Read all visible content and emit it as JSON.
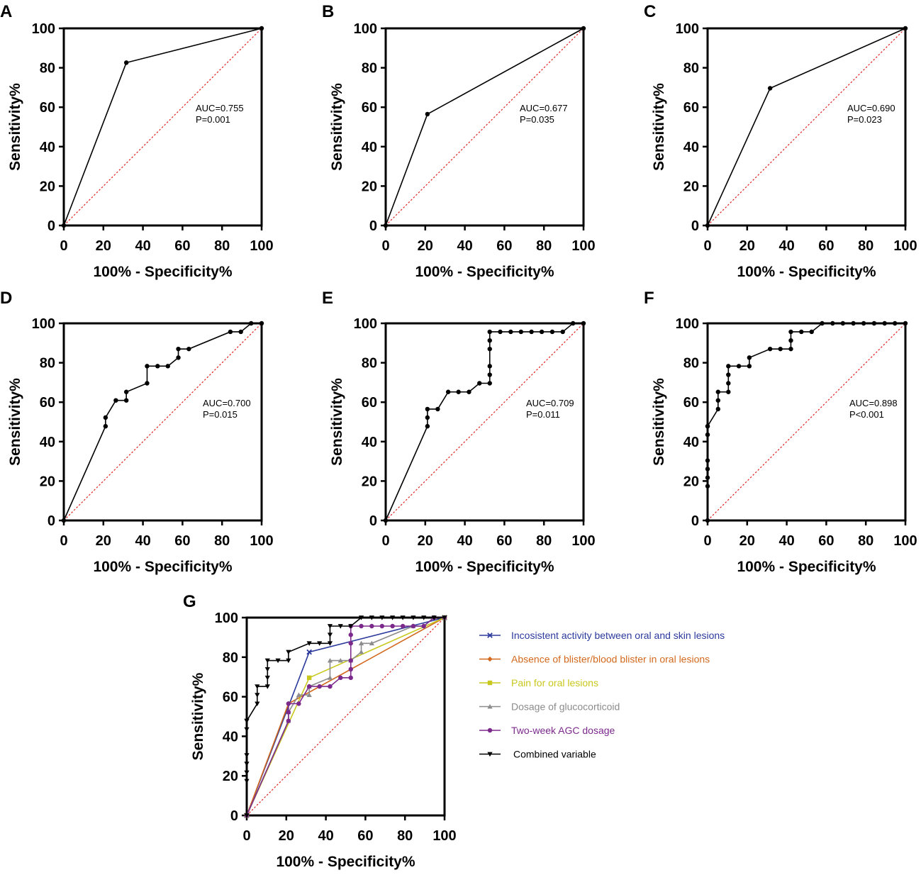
{
  "figure": {
    "xlabel": "100% - Specificity%",
    "ylabel": "Sensitivity%",
    "ticks": [
      "0",
      "20",
      "40",
      "60",
      "80",
      "100"
    ]
  },
  "chart_data": [
    {
      "panel": "A",
      "type": "line",
      "title": "",
      "xlabel": "100% - Specificity%",
      "ylabel": "Sensitivity%",
      "xlim": [
        0,
        100
      ],
      "ylim": [
        0,
        100
      ],
      "annotation": [
        "AUC=0.755",
        "P=0.001"
      ],
      "reference_line": [
        [
          0,
          0
        ],
        [
          100,
          100
        ]
      ],
      "series": [
        {
          "name": "ROC",
          "color": "#000000",
          "marker": "circle",
          "x": [
            0,
            31.6,
            100
          ],
          "y": [
            0,
            82.6,
            100
          ]
        }
      ]
    },
    {
      "panel": "B",
      "type": "line",
      "title": "",
      "xlabel": "100% - Specificity%",
      "ylabel": "Sensitivity%",
      "xlim": [
        0,
        100
      ],
      "ylim": [
        0,
        100
      ],
      "annotation": [
        "AUC=0.677",
        "P=0.035"
      ],
      "reference_line": [
        [
          0,
          0
        ],
        [
          100,
          100
        ]
      ],
      "series": [
        {
          "name": "ROC",
          "color": "#000000",
          "marker": "circle",
          "x": [
            0,
            21.1,
            100
          ],
          "y": [
            0,
            56.5,
            100
          ]
        }
      ]
    },
    {
      "panel": "C",
      "type": "line",
      "title": "",
      "xlabel": "100% - Specificity%",
      "ylabel": "Sensitivity%",
      "xlim": [
        0,
        100
      ],
      "ylim": [
        0,
        100
      ],
      "annotation": [
        "AUC=0.690",
        "P=0.023"
      ],
      "reference_line": [
        [
          0,
          0
        ],
        [
          100,
          100
        ]
      ],
      "series": [
        {
          "name": "ROC",
          "color": "#000000",
          "marker": "circle",
          "x": [
            0,
            31.6,
            100
          ],
          "y": [
            0,
            69.6,
            100
          ]
        }
      ]
    },
    {
      "panel": "D",
      "type": "line",
      "title": "",
      "xlabel": "100% - Specificity%",
      "ylabel": "Sensitivity%",
      "xlim": [
        0,
        100
      ],
      "ylim": [
        0,
        100
      ],
      "annotation": [
        "AUC=0.700",
        "P=0.015"
      ],
      "reference_line": [
        [
          0,
          0
        ],
        [
          100,
          100
        ]
      ],
      "series": [
        {
          "name": "ROC",
          "color": "#000000",
          "marker": "circle",
          "x": [
            0,
            21.1,
            21.1,
            26.3,
            31.6,
            31.6,
            42.1,
            42.1,
            47.4,
            52.6,
            57.9,
            57.9,
            63.2,
            84.2,
            89.5,
            94.7,
            100
          ],
          "y": [
            0,
            47.8,
            52.2,
            60.9,
            60.9,
            65.2,
            69.6,
            78.3,
            78.3,
            78.3,
            82.6,
            87.0,
            87.0,
            95.7,
            95.7,
            100,
            100
          ]
        }
      ]
    },
    {
      "panel": "E",
      "type": "line",
      "title": "",
      "xlabel": "100% - Specificity%",
      "ylabel": "Sensitivity%",
      "xlim": [
        0,
        100
      ],
      "ylim": [
        0,
        100
      ],
      "annotation": [
        "AUC=0.709",
        "P=0.011"
      ],
      "reference_line": [
        [
          0,
          0
        ],
        [
          100,
          100
        ]
      ],
      "series": [
        {
          "name": "ROC",
          "color": "#000000",
          "marker": "circle",
          "x": [
            0,
            21.1,
            21.1,
            21.1,
            26.3,
            31.6,
            36.8,
            42.1,
            47.4,
            52.6,
            52.6,
            52.6,
            52.6,
            52.6,
            52.6,
            57.9,
            63.2,
            68.4,
            73.7,
            78.9,
            84.2,
            89.5,
            94.7,
            100
          ],
          "y": [
            0,
            47.8,
            52.2,
            56.5,
            56.5,
            65.2,
            65.2,
            65.2,
            69.6,
            69.6,
            73.9,
            78.3,
            87.0,
            91.3,
            95.7,
            95.7,
            95.7,
            95.7,
            95.7,
            95.7,
            95.7,
            95.7,
            100,
            100
          ]
        }
      ]
    },
    {
      "panel": "F",
      "type": "line",
      "title": "",
      "xlabel": "100% - Specificity%",
      "ylabel": "Sensitivity%",
      "xlim": [
        0,
        100
      ],
      "ylim": [
        0,
        100
      ],
      "annotation": [
        "AUC=0.898",
        "P<0.001"
      ],
      "reference_line": [
        [
          0,
          0
        ],
        [
          100,
          100
        ]
      ],
      "series": [
        {
          "name": "ROC",
          "color": "#000000",
          "marker": "circle",
          "x": [
            0,
            0,
            0,
            0,
            0,
            0,
            0,
            0,
            5.3,
            5.3,
            5.3,
            10.5,
            10.5,
            10.5,
            10.5,
            15.8,
            21.1,
            21.1,
            31.6,
            36.8,
            42.1,
            42.1,
            42.1,
            47.4,
            52.6,
            57.9,
            63.2,
            68.4,
            73.7,
            78.9,
            84.2,
            89.5,
            94.7,
            100
          ],
          "y": [
            0,
            17.4,
            21.7,
            26.1,
            30.4,
            43.5,
            47.8,
            47.8,
            56.5,
            60.9,
            65.2,
            65.2,
            69.6,
            73.9,
            78.3,
            78.3,
            78.3,
            82.6,
            87.0,
            87.0,
            87.0,
            91.3,
            95.7,
            95.7,
            95.7,
            100,
            100,
            100,
            100,
            100,
            100,
            100,
            100,
            100
          ]
        }
      ]
    },
    {
      "panel": "G",
      "type": "line",
      "title": "",
      "xlabel": "100% - Specificity%",
      "ylabel": "Sensitivity%",
      "xlim": [
        0,
        100
      ],
      "ylim": [
        0,
        100
      ],
      "reference_line": [
        [
          0,
          0
        ],
        [
          100,
          100
        ]
      ],
      "legend_position": "right",
      "series": [
        {
          "name": "Incosistent activity between oral and skin lesions",
          "color": "#2b3a9c",
          "marker": "x",
          "x": [
            0,
            31.6,
            100
          ],
          "y": [
            0,
            82.6,
            100
          ]
        },
        {
          "name": "Absence of blister/blood blister in oral lesions",
          "color": "#d2691e",
          "marker": "diamond",
          "x": [
            0,
            21.1,
            100
          ],
          "y": [
            0,
            56.5,
            100
          ]
        },
        {
          "name": "Pain for oral lesions",
          "color": "#c8c81e",
          "marker": "square",
          "x": [
            0,
            31.6,
            100
          ],
          "y": [
            0,
            69.6,
            100
          ]
        },
        {
          "name": "Dosage of glucocorticoid",
          "color": "#8c8c8c",
          "marker": "triangle-up",
          "x": [
            0,
            21.1,
            21.1,
            26.3,
            31.6,
            31.6,
            42.1,
            42.1,
            47.4,
            52.6,
            57.9,
            57.9,
            63.2,
            84.2,
            89.5,
            94.7,
            100
          ],
          "y": [
            0,
            47.8,
            52.2,
            60.9,
            60.9,
            65.2,
            69.6,
            78.3,
            78.3,
            78.3,
            82.6,
            87.0,
            87.0,
            95.7,
            95.7,
            100,
            100
          ]
        },
        {
          "name": "Two-week AGC dosage",
          "color": "#7b2a8c",
          "marker": "circle",
          "x": [
            0,
            21.1,
            21.1,
            21.1,
            26.3,
            31.6,
            36.8,
            42.1,
            47.4,
            52.6,
            52.6,
            52.6,
            52.6,
            52.6,
            52.6,
            57.9,
            63.2,
            68.4,
            73.7,
            78.9,
            84.2,
            89.5,
            94.7,
            100
          ],
          "y": [
            0,
            47.8,
            52.2,
            56.5,
            56.5,
            65.2,
            65.2,
            65.2,
            69.6,
            69.6,
            73.9,
            78.3,
            87.0,
            91.3,
            95.7,
            95.7,
            95.7,
            95.7,
            95.7,
            95.7,
            95.7,
            95.7,
            100,
            100
          ]
        },
        {
          "name": "Combined variable",
          "color": "#000000",
          "marker": "triangle-down",
          "x": [
            0,
            0,
            0,
            0,
            0,
            0,
            0,
            0,
            5.3,
            5.3,
            5.3,
            10.5,
            10.5,
            10.5,
            10.5,
            15.8,
            21.1,
            21.1,
            31.6,
            36.8,
            42.1,
            42.1,
            42.1,
            47.4,
            52.6,
            57.9,
            63.2,
            68.4,
            73.7,
            78.9,
            84.2,
            89.5,
            94.7,
            100
          ],
          "y": [
            0,
            17.4,
            21.7,
            26.1,
            30.4,
            43.5,
            47.8,
            47.8,
            56.5,
            60.9,
            65.2,
            65.2,
            69.6,
            73.9,
            78.3,
            78.3,
            78.3,
            82.6,
            87.0,
            87.0,
            87.0,
            91.3,
            95.7,
            95.7,
            95.7,
            100,
            100,
            100,
            100,
            100,
            100,
            100,
            100,
            100
          ]
        }
      ]
    }
  ]
}
